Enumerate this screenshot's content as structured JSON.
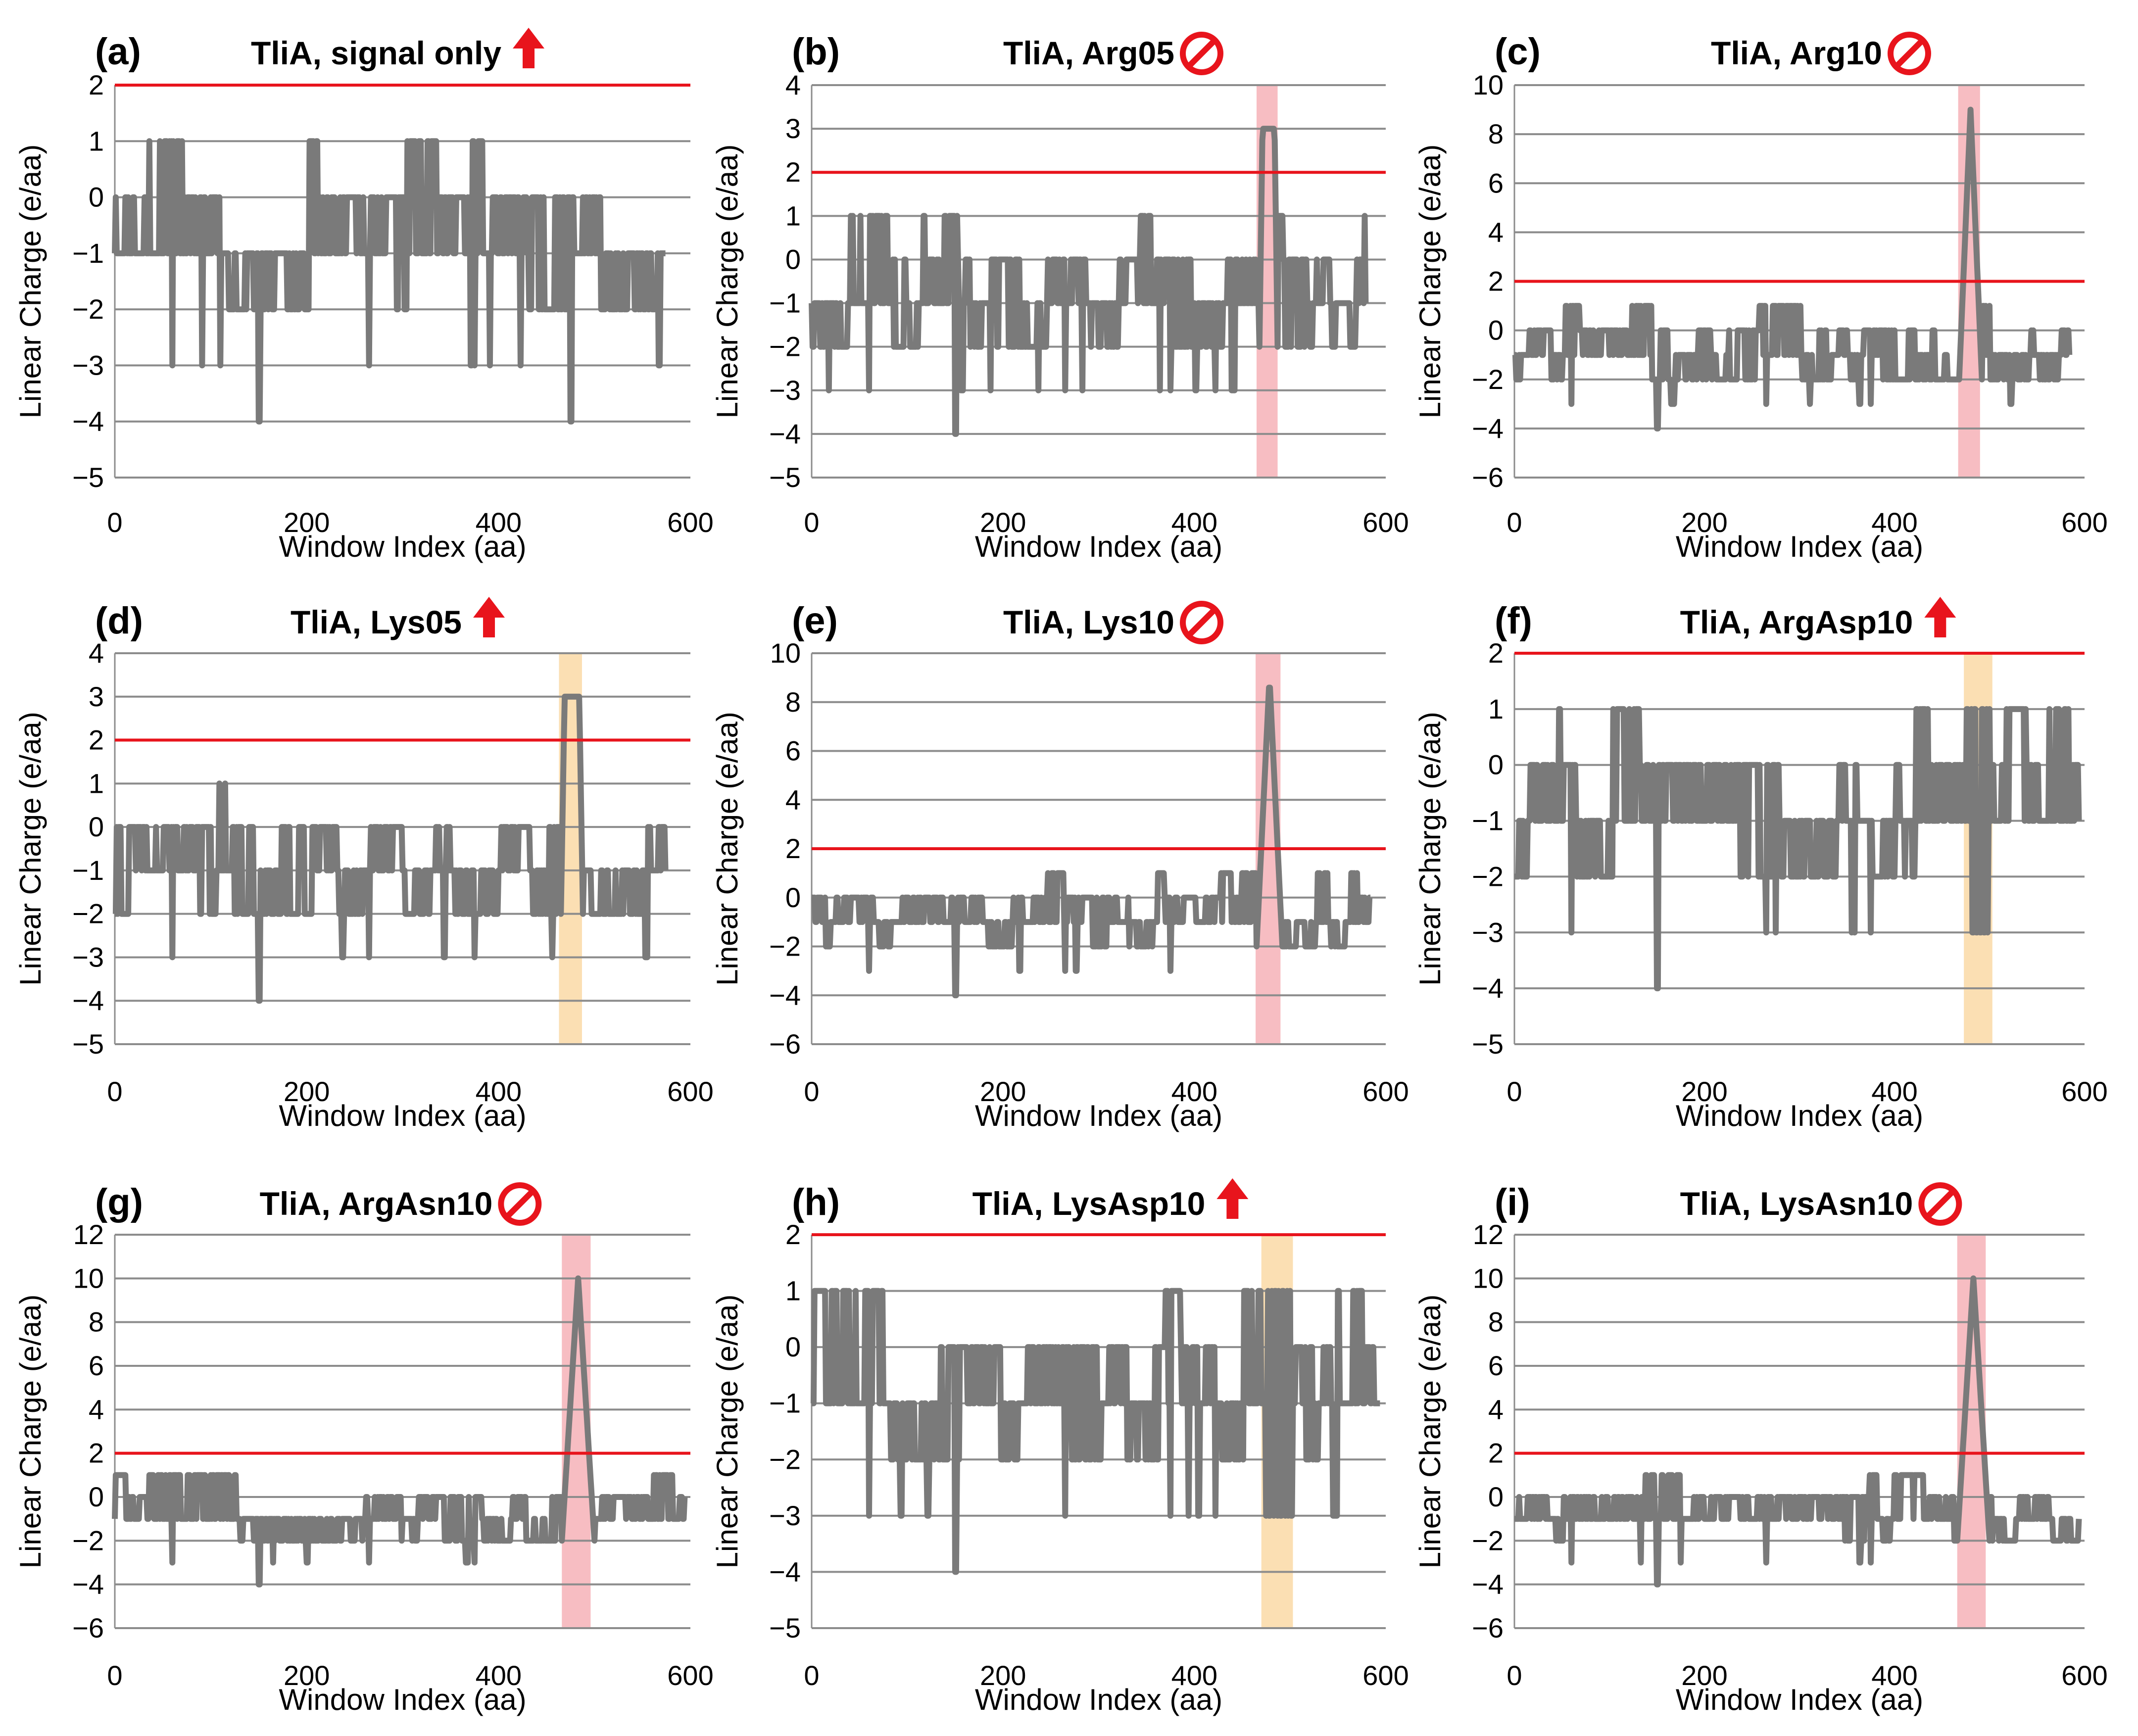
{
  "figure": {
    "xlabel": "Window Index (aa)",
    "ylabel": "Linear Charge (e/aa)",
    "colors": {
      "series": "#7a7a7a",
      "threshold": "#e8141c",
      "grid": "#8c8c8c",
      "highlight_red": "#f4a7ae",
      "highlight_orange": "#f9d49a",
      "marker": "#e8141c"
    }
  },
  "chart_data": [
    {
      "panel_label": "(a)",
      "title": "TliA, signal only",
      "marker_icon": "up-arrow-icon",
      "type": "line",
      "xlim": [
        0,
        600
      ],
      "x_ticks": [
        0,
        200,
        400,
        600
      ],
      "ylim": [
        -5,
        2
      ],
      "y_ticks": [
        -5,
        -4,
        -3,
        -2,
        -1,
        0,
        1,
        2
      ],
      "threshold": 2,
      "highlight": null,
      "peak": null,
      "n_points": 575,
      "seed": 11,
      "spike_base": 0
    },
    {
      "panel_label": "(b)",
      "title": "TliA, Arg05",
      "marker_icon": "no-entry-icon",
      "type": "line",
      "xlim": [
        0,
        600
      ],
      "x_ticks": [
        0,
        200,
        400,
        600
      ],
      "ylim": [
        -5,
        4
      ],
      "y_ticks": [
        -5,
        -4,
        -3,
        -2,
        -1,
        0,
        1,
        2,
        3,
        4
      ],
      "threshold": 2,
      "highlight": {
        "x_start": 465,
        "x_end": 487,
        "color": "red"
      },
      "peak": {
        "x_start": 468,
        "x_end": 487,
        "y": 3,
        "shape": "plateau"
      },
      "n_points": 580,
      "seed": 23,
      "spike_base": 0
    },
    {
      "panel_label": "(c)",
      "title": "TliA, Arg10",
      "marker_icon": "no-entry-icon",
      "type": "line",
      "xlim": [
        0,
        600
      ],
      "x_ticks": [
        0,
        200,
        400,
        600
      ],
      "ylim": [
        -6,
        10
      ],
      "y_ticks": [
        -6,
        -4,
        -2,
        0,
        2,
        4,
        6,
        8,
        10
      ],
      "threshold": 2,
      "highlight": {
        "x_start": 467,
        "x_end": 490,
        "color": "red"
      },
      "peak": {
        "x_start": 468,
        "x_end": 492,
        "y": 9,
        "shape": "triangle"
      },
      "n_points": 585,
      "seed": 37,
      "spike_base": 0
    },
    {
      "panel_label": "(d)",
      "title": "TliA, Lys05",
      "marker_icon": "up-arrow-icon",
      "type": "line",
      "xlim": [
        0,
        600
      ],
      "x_ticks": [
        0,
        200,
        400,
        600
      ],
      "ylim": [
        -5,
        4
      ],
      "y_ticks": [
        -5,
        -4,
        -3,
        -2,
        -1,
        0,
        1,
        2,
        3,
        4
      ],
      "threshold": 2,
      "highlight": {
        "x_start": 463,
        "x_end": 487,
        "color": "orange"
      },
      "peak": {
        "x_start": 465,
        "x_end": 488,
        "y": 3,
        "shape": "plateau"
      },
      "n_points": 575,
      "seed": 41,
      "spike_base": 0
    },
    {
      "panel_label": "(e)",
      "title": "TliA, Lys10",
      "marker_icon": "no-entry-icon",
      "type": "line",
      "xlim": [
        0,
        600
      ],
      "x_ticks": [
        0,
        200,
        400,
        600
      ],
      "ylim": [
        -6,
        10
      ],
      "y_ticks": [
        -6,
        -4,
        -2,
        0,
        2,
        4,
        6,
        8,
        10
      ],
      "threshold": 2,
      "highlight": {
        "x_start": 464,
        "x_end": 490,
        "color": "red"
      },
      "peak": {
        "x_start": 465,
        "x_end": 492,
        "y": 9,
        "shape": "triangle"
      },
      "n_points": 585,
      "seed": 53,
      "spike_base": 0
    },
    {
      "panel_label": "(f)",
      "title": "TliA, ArgAsp10",
      "marker_icon": "up-arrow-icon",
      "type": "line",
      "xlim": [
        0,
        600
      ],
      "x_ticks": [
        0,
        200,
        400,
        600
      ],
      "ylim": [
        -5,
        2
      ],
      "y_ticks": [
        -5,
        -4,
        -3,
        -2,
        -1,
        0,
        1,
        2
      ],
      "threshold": 2,
      "highlight": {
        "x_start": 473,
        "x_end": 503,
        "color": "orange"
      },
      "peak": {
        "x_start": 475,
        "x_end": 500,
        "y": 1,
        "shape": "spike"
      },
      "n_points": 595,
      "seed": 67,
      "spike_base": -3
    },
    {
      "panel_label": "(g)",
      "title": "TliA, ArgAsn10",
      "marker_icon": "no-entry-icon",
      "type": "line",
      "xlim": [
        0,
        600
      ],
      "x_ticks": [
        0,
        200,
        400,
        600
      ],
      "ylim": [
        -6,
        12
      ],
      "y_ticks": [
        -6,
        -4,
        -2,
        0,
        2,
        4,
        6,
        8,
        10,
        12
      ],
      "threshold": 2,
      "highlight": {
        "x_start": 466,
        "x_end": 496,
        "color": "red"
      },
      "peak": {
        "x_start": 466,
        "x_end": 500,
        "y": 10,
        "shape": "triangle"
      },
      "n_points": 595,
      "seed": 71,
      "spike_base": 0
    },
    {
      "panel_label": "(h)",
      "title": "TliA, LysAsp10",
      "marker_icon": "up-arrow-icon",
      "type": "line",
      "xlim": [
        0,
        600
      ],
      "x_ticks": [
        0,
        200,
        400,
        600
      ],
      "ylim": [
        -5,
        2
      ],
      "y_ticks": [
        -5,
        -4,
        -3,
        -2,
        -1,
        0,
        1,
        2
      ],
      "threshold": 2,
      "highlight": {
        "x_start": 470,
        "x_end": 503,
        "color": "orange"
      },
      "peak": {
        "x_start": 475,
        "x_end": 500,
        "y": 1,
        "shape": "spike"
      },
      "n_points": 595,
      "seed": 83,
      "spike_base": -3
    },
    {
      "panel_label": "(i)",
      "title": "TliA, LysAsn10",
      "marker_icon": "no-entry-icon",
      "type": "line",
      "xlim": [
        0,
        600
      ],
      "x_ticks": [
        0,
        200,
        400,
        600
      ],
      "ylim": [
        -6,
        12
      ],
      "y_ticks": [
        -6,
        -4,
        -2,
        0,
        2,
        4,
        6,
        8,
        10,
        12
      ],
      "threshold": 2,
      "highlight": {
        "x_start": 466,
        "x_end": 496,
        "color": "red"
      },
      "peak": {
        "x_start": 466,
        "x_end": 500,
        "y": 10,
        "shape": "triangle"
      },
      "n_points": 595,
      "seed": 97,
      "spike_base": 0
    }
  ]
}
